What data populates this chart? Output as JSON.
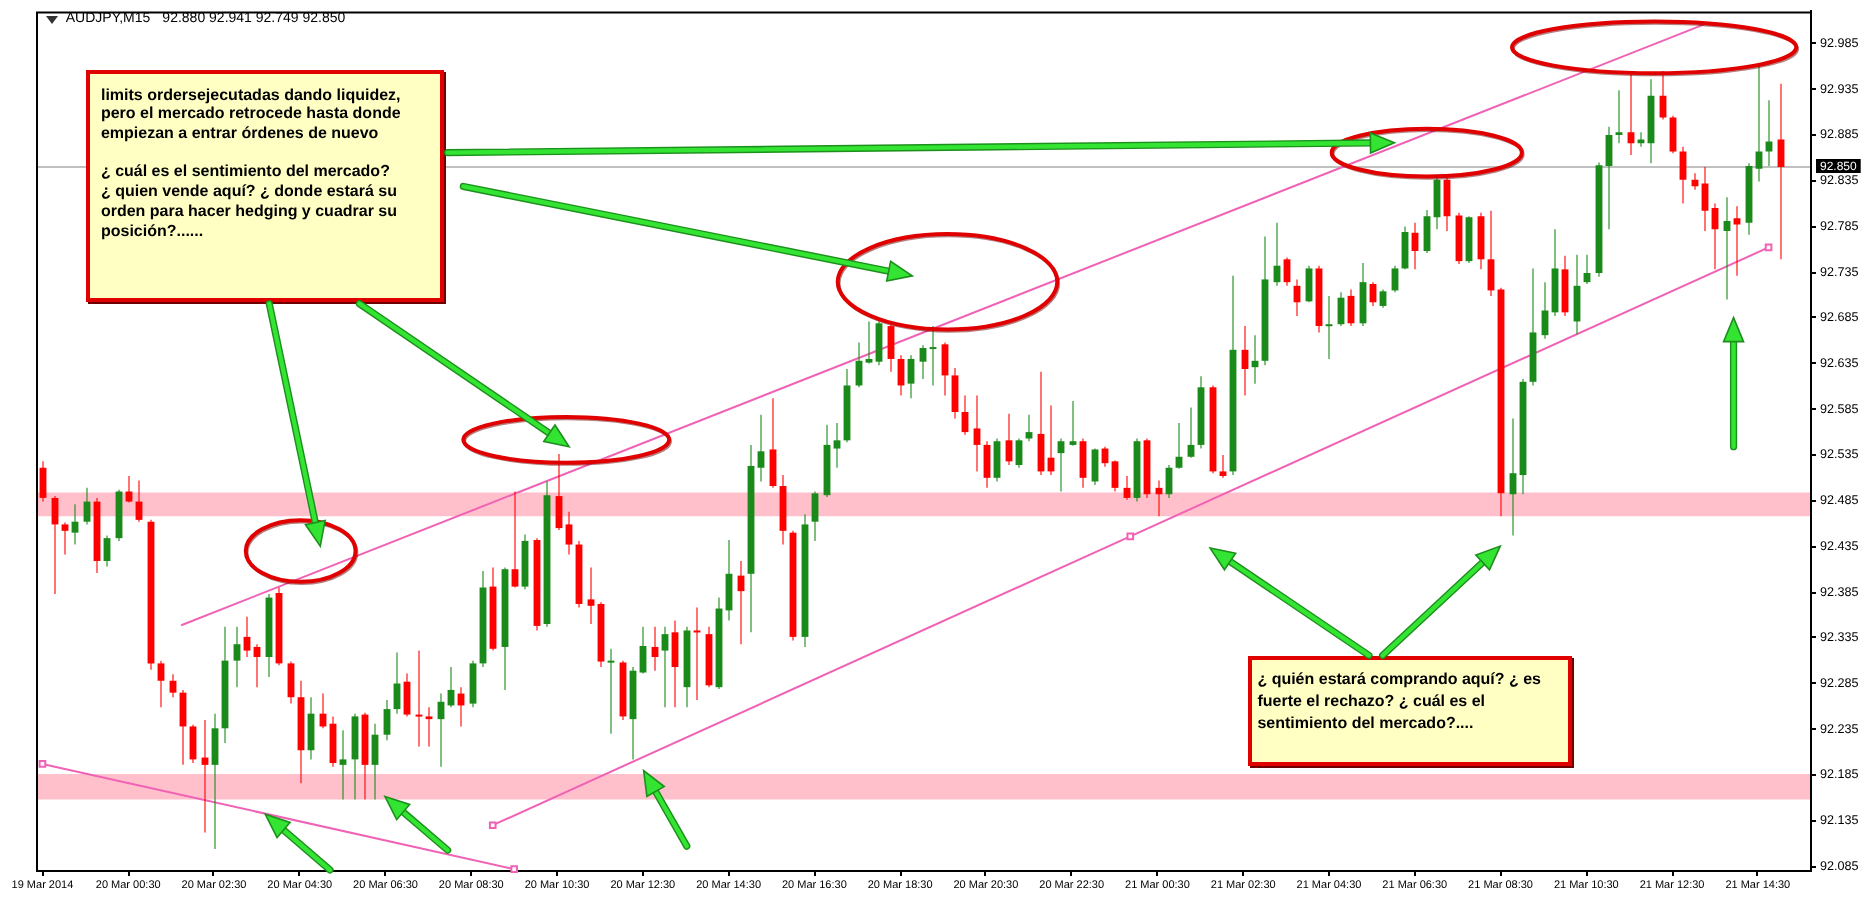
{
  "chart_data": {
    "type": "candlestick",
    "title": "AUDJPY,M15",
    "subtitle": "92.880 92.941 92.749 92.850",
    "annotations": [
      "limits ordersejecutadas dando liquidez,\npero el mercado retrocede hasta donde\nempiezan a entrar órdenes de nuevo\n\n¿ cuál es el sentimiento del mercado?\n¿ quien vende aquí? ¿ donde estará su\norden para hacer hedging y cuadrar su\nposición?......",
      "¿ quién estará comprando aquí? ¿ es\nfuerte el rechazo? ¿ cuál es el\nsentimiento del mercado?...."
    ],
    "series": [
      {
        "x": [
          "2014-03-19T22:30",
          "2014-03-19T22:45",
          "2014-03-19T23:00",
          "2014-03-19T23:15",
          "2014-03-19T23:30",
          "2014-03-19T23:45",
          "2014-03-20T00:00",
          "2014-03-20T00:15",
          "2014-03-20T00:30",
          "2014-03-20T00:45",
          "2014-03-20T01:00",
          "2014-03-20T01:15",
          "2014-03-20T01:30",
          "2014-03-20T01:45",
          "2014-03-20T02:00",
          "2014-03-20T02:15",
          "2014-03-20T02:30",
          "2014-03-20T02:45",
          "2014-03-20T03:00",
          "2014-03-20T03:15",
          "2014-03-20T03:30",
          "2014-03-20T03:45",
          "2014-03-20T04:00",
          "2014-03-20T04:15",
          "2014-03-20T04:30",
          "2014-03-20T04:45",
          "2014-03-20T05:00",
          "2014-03-20T05:15",
          "2014-03-20T05:30",
          "2014-03-20T05:45",
          "2014-03-20T06:00",
          "2014-03-20T06:15",
          "2014-03-20T06:30",
          "2014-03-20T06:45",
          "2014-03-20T07:00",
          "2014-03-20T07:15",
          "2014-03-20T07:30",
          "2014-03-20T07:45",
          "2014-03-20T08:00",
          "2014-03-20T08:15",
          "2014-03-20T08:30",
          "2014-03-20T08:45",
          "2014-03-20T09:00",
          "2014-03-20T09:15",
          "2014-03-20T09:30",
          "2014-03-20T09:45",
          "2014-03-20T10:00",
          "2014-03-20T10:15",
          "2014-03-20T10:30",
          "2014-03-20T10:45",
          "2014-03-20T11:00",
          "2014-03-20T11:15",
          "2014-03-20T11:30",
          "2014-03-20T11:45",
          "2014-03-20T12:00",
          "2014-03-20T12:15",
          "2014-03-20T12:30",
          "2014-03-20T12:45",
          "2014-03-20T13:00",
          "2014-03-20T13:15",
          "2014-03-20T13:30",
          "2014-03-20T13:45",
          "2014-03-20T14:00",
          "2014-03-20T14:15",
          "2014-03-20T14:30",
          "2014-03-20T14:45",
          "2014-03-20T15:00",
          "2014-03-20T15:15",
          "2014-03-20T15:30",
          "2014-03-20T15:45",
          "2014-03-20T16:00",
          "2014-03-20T16:15",
          "2014-03-20T16:30",
          "2014-03-20T16:45",
          "2014-03-20T17:00",
          "2014-03-20T17:15",
          "2014-03-20T17:30",
          "2014-03-20T17:45",
          "2014-03-20T18:00",
          "2014-03-20T18:15",
          "2014-03-20T18:30",
          "2014-03-20T18:45",
          "2014-03-20T19:00",
          "2014-03-20T19:15",
          "2014-03-20T19:30",
          "2014-03-20T19:45",
          "2014-03-20T20:00",
          "2014-03-20T20:15",
          "2014-03-20T20:30",
          "2014-03-20T20:45",
          "2014-03-20T21:00",
          "2014-03-20T21:15",
          "2014-03-20T21:30",
          "2014-03-20T21:45",
          "2014-03-20T22:00",
          "2014-03-20T22:15",
          "2014-03-20T22:30",
          "2014-03-20T22:45",
          "2014-03-20T23:00",
          "2014-03-20T23:15",
          "2014-03-20T23:30",
          "2014-03-20T23:45",
          "2014-03-21T00:00",
          "2014-03-21T00:15",
          "2014-03-21T00:30",
          "2014-03-21T00:45",
          "2014-03-21T01:00",
          "2014-03-21T01:15",
          "2014-03-21T01:30",
          "2014-03-21T01:45",
          "2014-03-21T02:00",
          "2014-03-21T02:15",
          "2014-03-21T02:30",
          "2014-03-21T02:45",
          "2014-03-21T03:00",
          "2014-03-21T03:15",
          "2014-03-21T03:30",
          "2014-03-21T03:45",
          "2014-03-21T04:00",
          "2014-03-21T04:15",
          "2014-03-21T04:30",
          "2014-03-21T04:45",
          "2014-03-21T05:00",
          "2014-03-21T05:15",
          "2014-03-21T05:30",
          "2014-03-21T05:45",
          "2014-03-21T06:00",
          "2014-03-21T06:15",
          "2014-03-21T06:30",
          "2014-03-21T06:45",
          "2014-03-21T07:00",
          "2014-03-21T07:15",
          "2014-03-21T07:30",
          "2014-03-21T07:45",
          "2014-03-21T08:00",
          "2014-03-21T08:15",
          "2014-03-21T08:30",
          "2014-03-21T08:45",
          "2014-03-21T09:00",
          "2014-03-21T09:15",
          "2014-03-21T09:30",
          "2014-03-21T09:45",
          "2014-03-21T10:00",
          "2014-03-21T10:15",
          "2014-03-21T10:30",
          "2014-03-21T10:45",
          "2014-03-21T11:00",
          "2014-03-21T11:15",
          "2014-03-21T11:30",
          "2014-03-21T11:45",
          "2014-03-21T12:00",
          "2014-03-21T12:15",
          "2014-03-21T12:30",
          "2014-03-21T12:45",
          "2014-03-21T13:00",
          "2014-03-21T13:15",
          "2014-03-21T13:30",
          "2014-03-21T13:45",
          "2014-03-21T14:00",
          "2014-03-21T14:15",
          "2014-03-21T14:30",
          "2014-03-21T14:45",
          "2014-03-21T15:00"
        ],
        "ohlc": [
          [
            92.521,
            92.528,
            92.484,
            92.488
          ],
          [
            92.488,
            92.49,
            92.383,
            92.459
          ],
          [
            92.459,
            92.461,
            92.426,
            92.452
          ],
          [
            92.45,
            92.481,
            92.437,
            92.462
          ],
          [
            92.462,
            92.499,
            92.459,
            92.484
          ],
          [
            92.484,
            92.488,
            92.406,
            92.419
          ],
          [
            92.419,
            92.447,
            92.413,
            92.444
          ],
          [
            92.444,
            92.497,
            92.441,
            92.495
          ],
          [
            92.495,
            92.512,
            92.483,
            92.484
          ],
          [
            92.484,
            92.507,
            92.462,
            92.464
          ],
          [
            92.462,
            92.464,
            92.3,
            92.307
          ],
          [
            92.307,
            92.31,
            92.259,
            92.288
          ],
          [
            92.288,
            92.295,
            92.27,
            92.275
          ],
          [
            92.275,
            92.278,
            92.196,
            92.238
          ],
          [
            92.238,
            92.24,
            92.198,
            92.202
          ],
          [
            92.204,
            92.245,
            92.122,
            92.196
          ],
          [
            92.196,
            92.252,
            92.104,
            92.236
          ],
          [
            92.236,
            92.347,
            92.22,
            92.31
          ],
          [
            92.31,
            92.347,
            92.281,
            92.328
          ],
          [
            92.336,
            92.358,
            92.314,
            92.321
          ],
          [
            92.325,
            92.328,
            92.281,
            92.314
          ],
          [
            92.314,
            92.383,
            92.292,
            92.379
          ],
          [
            92.384,
            92.39,
            92.305,
            92.307
          ],
          [
            92.307,
            92.309,
            92.263,
            92.27
          ],
          [
            92.27,
            92.288,
            92.176,
            92.212
          ],
          [
            92.212,
            92.27,
            92.202,
            92.252
          ],
          [
            92.252,
            92.274,
            92.236,
            92.238
          ],
          [
            92.241,
            92.249,
            92.194,
            92.198
          ],
          [
            92.196,
            92.234,
            92.158,
            92.202
          ],
          [
            92.202,
            92.252,
            92.158,
            92.249
          ],
          [
            92.251,
            92.253,
            92.158,
            92.196
          ],
          [
            92.196,
            92.241,
            92.158,
            92.229
          ],
          [
            92.229,
            92.267,
            92.223,
            92.257
          ],
          [
            92.257,
            92.319,
            92.252,
            92.285
          ],
          [
            92.287,
            92.296,
            92.249,
            92.251
          ],
          [
            92.251,
            92.321,
            92.216,
            92.249
          ],
          [
            92.249,
            92.259,
            92.216,
            92.246
          ],
          [
            92.246,
            92.274,
            92.194,
            92.265
          ],
          [
            92.261,
            92.303,
            92.259,
            92.278
          ],
          [
            92.274,
            92.281,
            92.238,
            92.261
          ],
          [
            92.263,
            92.31,
            92.259,
            92.307
          ],
          [
            92.307,
            92.408,
            92.303,
            92.39
          ],
          [
            92.391,
            92.412,
            92.321,
            92.323
          ],
          [
            92.325,
            92.412,
            92.278,
            92.41
          ],
          [
            92.41,
            92.495,
            92.39,
            92.391
          ],
          [
            92.391,
            92.448,
            92.388,
            92.441
          ],
          [
            92.442,
            92.444,
            92.343,
            92.348
          ],
          [
            92.35,
            92.506,
            92.347,
            92.491
          ],
          [
            92.49,
            92.536,
            92.453,
            92.455
          ],
          [
            92.459,
            92.473,
            92.426,
            92.437
          ],
          [
            92.437,
            92.441,
            92.368,
            92.372
          ],
          [
            92.377,
            92.412,
            92.35,
            92.37
          ],
          [
            92.372,
            92.374,
            92.303,
            92.309
          ],
          [
            92.308,
            92.323,
            92.23,
            92.31
          ],
          [
            92.308,
            92.31,
            92.245,
            92.249
          ],
          [
            92.246,
            92.303,
            92.202,
            92.299
          ],
          [
            92.297,
            92.347,
            92.296,
            92.326
          ],
          [
            92.325,
            92.347,
            92.299,
            92.314
          ],
          [
            92.321,
            92.347,
            92.259,
            92.339
          ],
          [
            92.341,
            92.354,
            92.259,
            92.303
          ],
          [
            92.281,
            92.347,
            92.259,
            92.343
          ],
          [
            92.343,
            92.368,
            92.267,
            92.341
          ],
          [
            92.339,
            92.347,
            92.281,
            92.283
          ],
          [
            92.281,
            92.379,
            92.279,
            92.367
          ],
          [
            92.365,
            92.442,
            92.354,
            92.405
          ],
          [
            92.403,
            92.419,
            92.328,
            92.386
          ],
          [
            92.405,
            92.546,
            92.341,
            92.523
          ],
          [
            92.521,
            92.579,
            92.506,
            92.539
          ],
          [
            92.541,
            92.597,
            92.499,
            92.501
          ],
          [
            92.501,
            92.513,
            92.437,
            92.452
          ],
          [
            92.45,
            92.452,
            92.332,
            92.336
          ],
          [
            92.336,
            92.47,
            92.325,
            92.459
          ],
          [
            92.462,
            92.495,
            92.441,
            92.493
          ],
          [
            92.491,
            92.568,
            92.489,
            92.546
          ],
          [
            92.542,
            92.57,
            92.521,
            92.551
          ],
          [
            92.551,
            92.629,
            92.549,
            92.611
          ],
          [
            92.611,
            92.658,
            92.609,
            92.638
          ],
          [
            92.636,
            92.681,
            92.635,
            92.64
          ],
          [
            92.637,
            92.681,
            92.633,
            92.679
          ],
          [
            92.676,
            92.68,
            92.626,
            92.64
          ],
          [
            92.64,
            92.644,
            92.6,
            92.611
          ],
          [
            92.613,
            92.644,
            92.597,
            92.64
          ],
          [
            92.637,
            92.655,
            92.618,
            92.652
          ],
          [
            92.651,
            92.676,
            92.611,
            92.653
          ],
          [
            92.656,
            92.658,
            92.6,
            92.622
          ],
          [
            92.622,
            92.63,
            92.575,
            92.582
          ],
          [
            92.582,
            92.6,
            92.557,
            92.56
          ],
          [
            92.564,
            92.6,
            92.517,
            92.546
          ],
          [
            92.546,
            92.55,
            92.499,
            92.51
          ],
          [
            92.51,
            92.553,
            92.506,
            92.55
          ],
          [
            92.551,
            92.58,
            92.524,
            92.528
          ],
          [
            92.524,
            92.553,
            92.521,
            92.551
          ],
          [
            92.553,
            92.579,
            92.55,
            92.56
          ],
          [
            92.558,
            92.626,
            92.513,
            92.517
          ],
          [
            92.532,
            92.589,
            92.513,
            92.517
          ],
          [
            92.537,
            92.553,
            92.495,
            92.55
          ],
          [
            92.546,
            92.594,
            92.545,
            92.55
          ],
          [
            92.55,
            92.553,
            92.499,
            92.51
          ],
          [
            92.506,
            92.542,
            92.502,
            92.541
          ],
          [
            92.542,
            92.544,
            92.522,
            92.526
          ],
          [
            92.528,
            92.529,
            92.495,
            92.499
          ],
          [
            92.499,
            92.512,
            92.486,
            92.488
          ],
          [
            92.488,
            92.553,
            92.484,
            92.55
          ],
          [
            92.551,
            92.553,
            92.488,
            92.492
          ],
          [
            92.499,
            92.507,
            92.468,
            92.492
          ],
          [
            92.492,
            92.524,
            92.488,
            92.521
          ],
          [
            92.521,
            92.57,
            92.52,
            92.533
          ],
          [
            92.533,
            92.587,
            92.532,
            92.546
          ],
          [
            92.546,
            92.621,
            92.542,
            92.609
          ],
          [
            92.609,
            92.611,
            92.515,
            92.517
          ],
          [
            92.517,
            92.535,
            92.51,
            92.512
          ],
          [
            92.517,
            92.731,
            92.513,
            92.65
          ],
          [
            92.65,
            92.676,
            92.6,
            92.629
          ],
          [
            92.631,
            92.666,
            92.613,
            92.638
          ],
          [
            92.638,
            92.774,
            92.633,
            92.727
          ],
          [
            92.724,
            92.789,
            92.72,
            92.742
          ],
          [
            92.749,
            92.751,
            92.72,
            92.724
          ],
          [
            92.72,
            92.727,
            92.687,
            92.702
          ],
          [
            92.703,
            92.742,
            92.702,
            92.739
          ],
          [
            92.739,
            92.742,
            92.669,
            92.676
          ],
          [
            92.676,
            92.709,
            92.64,
            92.678
          ],
          [
            92.678,
            92.713,
            92.676,
            92.707
          ],
          [
            92.709,
            92.716,
            92.676,
            92.679
          ],
          [
            92.679,
            92.745,
            92.676,
            92.724
          ],
          [
            92.722,
            92.724,
            92.698,
            92.702
          ],
          [
            92.698,
            92.716,
            92.696,
            92.714
          ],
          [
            92.715,
            92.742,
            92.713,
            92.739
          ],
          [
            92.739,
            92.785,
            92.738,
            92.779
          ],
          [
            92.778,
            92.789,
            92.738,
            92.758
          ],
          [
            92.758,
            92.803,
            92.756,
            92.796
          ],
          [
            92.795,
            92.838,
            92.782,
            92.836
          ],
          [
            92.836,
            92.838,
            92.78,
            92.796
          ],
          [
            92.797,
            92.8,
            92.744,
            92.747
          ],
          [
            92.747,
            92.796,
            92.745,
            92.795
          ],
          [
            92.796,
            92.8,
            92.738,
            92.749
          ],
          [
            92.749,
            92.802,
            92.709,
            92.715
          ],
          [
            92.716,
            92.718,
            92.468,
            92.493
          ],
          [
            92.492,
            92.575,
            92.447,
            92.515
          ],
          [
            92.513,
            92.618,
            92.492,
            92.615
          ],
          [
            92.615,
            92.739,
            92.611,
            92.669
          ],
          [
            92.666,
            92.724,
            92.662,
            92.693
          ],
          [
            92.691,
            92.782,
            92.687,
            92.739
          ],
          [
            92.738,
            92.753,
            92.687,
            92.691
          ],
          [
            92.681,
            92.754,
            92.667,
            92.72
          ],
          [
            92.724,
            92.754,
            92.722,
            92.734
          ],
          [
            92.734,
            92.855,
            92.73,
            92.852
          ],
          [
            92.851,
            92.894,
            92.782,
            92.885
          ],
          [
            92.885,
            92.934,
            92.876,
            92.888
          ],
          [
            92.888,
            92.955,
            92.863,
            92.876
          ],
          [
            92.876,
            92.888,
            92.872,
            92.88
          ],
          [
            92.876,
            92.946,
            92.854,
            92.928
          ],
          [
            92.928,
            92.955,
            92.902,
            92.904
          ],
          [
            92.904,
            92.906,
            92.865,
            92.867
          ],
          [
            92.867,
            92.872,
            92.81,
            92.836
          ],
          [
            92.836,
            92.843,
            92.825,
            92.829
          ],
          [
            92.832,
            92.85,
            92.78,
            92.802
          ],
          [
            92.805,
            92.81,
            92.738,
            92.782
          ],
          [
            92.78,
            92.817,
            92.705,
            92.791
          ],
          [
            92.794,
            92.807,
            92.731,
            92.787
          ],
          [
            92.789,
            92.854,
            92.776,
            92.851
          ],
          [
            92.848,
            92.962,
            92.834,
            92.867
          ],
          [
            92.867,
            92.923,
            92.851,
            92.878
          ],
          [
            92.88,
            92.941,
            92.749,
            92.85
          ]
        ],
        "colors": [
          "#ff0000",
          "#ff0000",
          "#ff0000",
          "#1a8a1a",
          "#1a8a1a",
          "#ff0000",
          "#1a8a1a",
          "#1a8a1a",
          "#ff0000",
          "#ff0000",
          "#ff0000",
          "#ff0000",
          "#ff0000",
          "#ff0000",
          "#ff0000",
          "#ff0000",
          "#1a8a1a",
          "#1a8a1a",
          "#1a8a1a",
          "#ff0000",
          "#ff0000",
          "#1a8a1a",
          "#ff0000",
          "#ff0000",
          "#ff0000",
          "#1a8a1a",
          "#ff0000",
          "#ff0000",
          "#1a8a1a",
          "#1a8a1a",
          "#ff0000",
          "#1a8a1a",
          "#1a8a1a",
          "#1a8a1a",
          "#ff0000",
          "#ff0000",
          "#ff0000",
          "#1a8a1a",
          "#1a8a1a",
          "#ff0000",
          "#1a8a1a",
          "#1a8a1a",
          "#ff0000",
          "#1a8a1a",
          "#ff0000",
          "#1a8a1a",
          "#ff0000",
          "#1a8a1a",
          "#ff0000",
          "#ff0000",
          "#ff0000",
          "#ff0000",
          "#ff0000",
          "#1a8a1a",
          "#ff0000",
          "#1a8a1a",
          "#1a8a1a",
          "#ff0000",
          "#1a8a1a",
          "#ff0000",
          "#1a8a1a",
          "#ff0000",
          "#ff0000",
          "#1a8a1a",
          "#1a8a1a",
          "#ff0000",
          "#1a8a1a",
          "#1a8a1a",
          "#ff0000",
          "#ff0000",
          "#ff0000",
          "#1a8a1a",
          "#1a8a1a",
          "#1a8a1a",
          "#1a8a1a",
          "#1a8a1a",
          "#1a8a1a",
          "#1a8a1a",
          "#1a8a1a",
          "#ff0000",
          "#ff0000",
          "#1a8a1a",
          "#1a8a1a",
          "#1a8a1a",
          "#ff0000",
          "#ff0000",
          "#ff0000",
          "#ff0000",
          "#ff0000",
          "#1a8a1a",
          "#ff0000",
          "#1a8a1a",
          "#1a8a1a",
          "#ff0000",
          "#ff0000",
          "#1a8a1a",
          "#1a8a1a",
          "#ff0000",
          "#1a8a1a",
          "#ff0000",
          "#ff0000",
          "#ff0000",
          "#1a8a1a",
          "#ff0000",
          "#ff0000",
          "#1a8a1a",
          "#1a8a1a",
          "#1a8a1a",
          "#1a8a1a",
          "#ff0000",
          "#ff0000",
          "#1a8a1a",
          "#ff0000",
          "#1a8a1a",
          "#1a8a1a",
          "#1a8a1a",
          "#ff0000",
          "#ff0000",
          "#1a8a1a",
          "#ff0000",
          "#1a8a1a",
          "#1a8a1a",
          "#ff0000",
          "#1a8a1a",
          "#ff0000",
          "#1a8a1a",
          "#1a8a1a",
          "#1a8a1a",
          "#ff0000",
          "#1a8a1a",
          "#1a8a1a",
          "#ff0000",
          "#ff0000",
          "#1a8a1a",
          "#ff0000",
          "#ff0000",
          "#ff0000",
          "#1a8a1a",
          "#1a8a1a",
          "#1a8a1a",
          "#1a8a1a",
          "#1a8a1a",
          "#ff0000",
          "#1a8a1a",
          "#1a8a1a",
          "#1a8a1a",
          "#1a8a1a",
          "#1a8a1a",
          "#ff0000",
          "#1a8a1a",
          "#1a8a1a",
          "#ff0000",
          "#ff0000",
          "#ff0000",
          "#ff0000",
          "#ff0000",
          "#ff0000",
          "#1a8a1a",
          "#ff0000",
          "#1a8a1a",
          "#1a8a1a",
          "#1a8a1a",
          "#ff0000"
        ]
      },
      {
        "type": "line",
        "x": [
          "2014-03-20T01:45",
          "2014-03-21T13:15"
        ],
        "values": [
          92.349,
          93.006
        ],
        "color": "#f062b5"
      },
      {
        "type": "line",
        "x": [
          "2014-03-20T09:00",
          "2014-03-20T23:52",
          "2014-03-21T14:45"
        ],
        "values": [
          92.13,
          92.446,
          92.762
        ],
        "color": "#f062b5",
        "marker": "square"
      },
      {
        "type": "line",
        "x": [
          "2014-03-19T22:30",
          "2014-03-20T09:30"
        ],
        "values": [
          92.197,
          92.082
        ],
        "color": "#f062b5",
        "marker": "square"
      }
    ],
    "bands": [
      {
        "axis": "y",
        "from": 92.158,
        "to": 92.186,
        "color": "#ffc0cb"
      },
      {
        "axis": "y",
        "from": 92.468,
        "to": 92.494,
        "color": "#ffc0cb"
      }
    ],
    "ref_lines": [
      {
        "axis": "y",
        "value": 92.85,
        "label": "92.850",
        "color": "#c0c0c0"
      }
    ],
    "xlim": [
      "2014-03-19T22:21",
      "2014-03-21T15:43"
    ],
    "xticks": [
      {
        "value": "2014-03-19T22:30",
        "label": "19 Mar 2014"
      },
      {
        "value": "2014-03-20T00:30",
        "label": "20 Mar 00:30"
      },
      {
        "value": "2014-03-20T02:30",
        "label": "20 Mar 02:30"
      },
      {
        "value": "2014-03-20T04:30",
        "label": "20 Mar 04:30"
      },
      {
        "value": "2014-03-20T06:30",
        "label": "20 Mar 06:30"
      },
      {
        "value": "2014-03-20T08:30",
        "label": "20 Mar 08:30"
      },
      {
        "value": "2014-03-20T10:30",
        "label": "20 Mar 10:30"
      },
      {
        "value": "2014-03-20T12:30",
        "label": "20 Mar 12:30"
      },
      {
        "value": "2014-03-20T14:30",
        "label": "20 Mar 14:30"
      },
      {
        "value": "2014-03-20T16:30",
        "label": "20 Mar 16:30"
      },
      {
        "value": "2014-03-20T18:30",
        "label": "20 Mar 18:30"
      },
      {
        "value": "2014-03-20T20:30",
        "label": "20 Mar 20:30"
      },
      {
        "value": "2014-03-20T22:30",
        "label": "20 Mar 22:30"
      },
      {
        "value": "2014-03-21T00:30",
        "label": "21 Mar 00:30"
      },
      {
        "value": "2014-03-21T02:30",
        "label": "21 Mar 02:30"
      },
      {
        "value": "2014-03-21T04:30",
        "label": "21 Mar 04:30"
      },
      {
        "value": "2014-03-21T06:30",
        "label": "21 Mar 06:30"
      },
      {
        "value": "2014-03-21T08:30",
        "label": "21 Mar 08:30"
      },
      {
        "value": "2014-03-21T10:30",
        "label": "21 Mar 10:30"
      },
      {
        "value": "2014-03-21T12:30",
        "label": "21 Mar 12:30"
      },
      {
        "value": "2014-03-21T14:30",
        "label": "21 Mar 14:30"
      }
    ],
    "ylim": [
      92.081,
      93.02
    ],
    "yticks": [
      92.085,
      92.135,
      92.185,
      92.235,
      92.285,
      92.335,
      92.385,
      92.435,
      92.485,
      92.535,
      92.585,
      92.635,
      92.685,
      92.735,
      92.785,
      92.835,
      92.885,
      92.935,
      92.985
    ]
  }
}
